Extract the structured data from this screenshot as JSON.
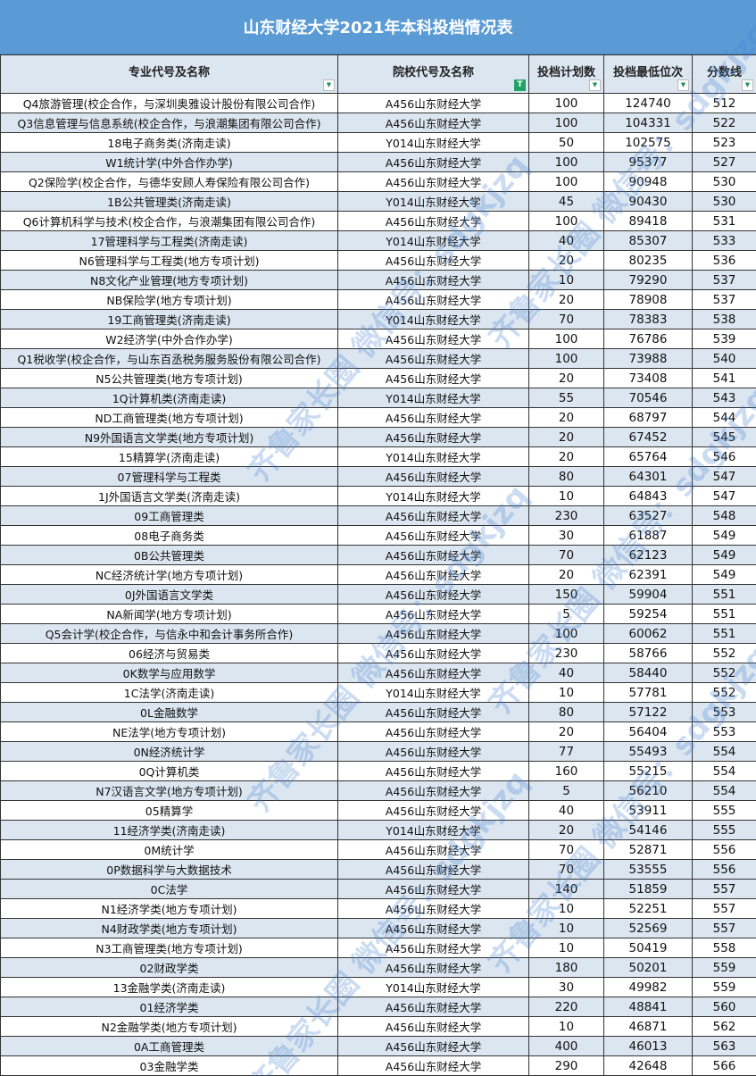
{
  "title": "山东财经大学2021年本科投档情况表",
  "columns": [
    "专业代号及名称",
    "院校代号及名称",
    "投档计划数",
    "投档最低位次",
    "分数线"
  ],
  "filter_icons": [
    "filter-dropdown-icon",
    "filter-active-icon",
    "filter-dropdown-icon",
    "filter-dropdown-icon",
    "filter-dropdown-icon"
  ],
  "colors": {
    "title_bg": "#5b9bd5",
    "stripe": "#dce6f1",
    "filter_active": "#21a366"
  },
  "watermark": "齐鲁家长圈 微信号：sdgkjzq",
  "rows": [
    [
      "Q4旅游管理(校企合作，与深圳奥雅设计股份有限公司合作)",
      "A456山东财经大学",
      "100",
      "124740",
      "512"
    ],
    [
      "Q3信息管理与信息系统(校企合作，与浪潮集团有限公司合作)",
      "A456山东财经大学",
      "100",
      "104331",
      "522"
    ],
    [
      "18电子商务类(济南走读)",
      "Y014山东财经大学",
      "50",
      "102575",
      "523"
    ],
    [
      "W1统计学(中外合作办学)",
      "A456山东财经大学",
      "100",
      "95377",
      "527"
    ],
    [
      "Q2保险学(校企合作，与德华安顾人寿保险有限公司合作)",
      "A456山东财经大学",
      "100",
      "90948",
      "530"
    ],
    [
      "1B公共管理类(济南走读)",
      "Y014山东财经大学",
      "45",
      "90430",
      "530"
    ],
    [
      "Q6计算机科学与技术(校企合作，与浪潮集团有限公司合作)",
      "A456山东财经大学",
      "100",
      "89418",
      "531"
    ],
    [
      "17管理科学与工程类(济南走读)",
      "Y014山东财经大学",
      "40",
      "85307",
      "533"
    ],
    [
      "N6管理科学与工程类(地方专项计划)",
      "A456山东财经大学",
      "20",
      "80235",
      "536"
    ],
    [
      "N8文化产业管理(地方专项计划)",
      "A456山东财经大学",
      "10",
      "79290",
      "537"
    ],
    [
      "NB保险学(地方专项计划)",
      "A456山东财经大学",
      "20",
      "78908",
      "537"
    ],
    [
      "19工商管理类(济南走读)",
      "Y014山东财经大学",
      "70",
      "78383",
      "538"
    ],
    [
      "W2经济学(中外合作办学)",
      "A456山东财经大学",
      "100",
      "76786",
      "539"
    ],
    [
      "Q1税收学(校企合作，与山东百丞税务服务股份有限公司合作)",
      "A456山东财经大学",
      "100",
      "73988",
      "540"
    ],
    [
      "N5公共管理类(地方专项计划)",
      "A456山东财经大学",
      "20",
      "73408",
      "541"
    ],
    [
      "1Q计算机类(济南走读)",
      "Y014山东财经大学",
      "55",
      "70546",
      "543"
    ],
    [
      "ND工商管理类(地方专项计划)",
      "A456山东财经大学",
      "20",
      "68797",
      "544"
    ],
    [
      "N9外国语言文学类(地方专项计划)",
      "A456山东财经大学",
      "20",
      "67452",
      "545"
    ],
    [
      "15精算学(济南走读)",
      "Y014山东财经大学",
      "20",
      "65764",
      "546"
    ],
    [
      "07管理科学与工程类",
      "A456山东财经大学",
      "80",
      "64301",
      "547"
    ],
    [
      "1J外国语言文学类(济南走读)",
      "Y014山东财经大学",
      "10",
      "64843",
      "547"
    ],
    [
      "09工商管理类",
      "A456山东财经大学",
      "230",
      "63527",
      "548"
    ],
    [
      "08电子商务类",
      "A456山东财经大学",
      "30",
      "61887",
      "549"
    ],
    [
      "0B公共管理类",
      "A456山东财经大学",
      "70",
      "62123",
      "549"
    ],
    [
      "NC经济统计学(地方专项计划)",
      "A456山东财经大学",
      "20",
      "62391",
      "549"
    ],
    [
      "0J外国语言文学类",
      "A456山东财经大学",
      "150",
      "59904",
      "551"
    ],
    [
      "NA新闻学(地方专项计划)",
      "A456山东财经大学",
      "5",
      "59254",
      "551"
    ],
    [
      "Q5会计学(校企合作，与信永中和会计事务所合作)",
      "A456山东财经大学",
      "100",
      "60062",
      "551"
    ],
    [
      "06经济与贸易类",
      "A456山东财经大学",
      "230",
      "58766",
      "552"
    ],
    [
      "0K数学与应用数学",
      "A456山东财经大学",
      "40",
      "58440",
      "552"
    ],
    [
      "1C法学(济南走读)",
      "Y014山东财经大学",
      "10",
      "57781",
      "552"
    ],
    [
      "0L金融数学",
      "A456山东财经大学",
      "80",
      "57122",
      "553"
    ],
    [
      "NE法学(地方专项计划)",
      "A456山东财经大学",
      "20",
      "56404",
      "553"
    ],
    [
      "0N经济统计学",
      "A456山东财经大学",
      "77",
      "55493",
      "554"
    ],
    [
      "0Q计算机类",
      "A456山东财经大学",
      "160",
      "55215",
      "554"
    ],
    [
      "N7汉语言文学(地方专项计划)",
      "A456山东财经大学",
      "5",
      "56210",
      "554"
    ],
    [
      "05精算学",
      "A456山东财经大学",
      "40",
      "53911",
      "555"
    ],
    [
      "11经济学类(济南走读)",
      "Y014山东财经大学",
      "20",
      "54146",
      "555"
    ],
    [
      "0M统计学",
      "A456山东财经大学",
      "70",
      "52871",
      "556"
    ],
    [
      "0P数据科学与大数据技术",
      "A456山东财经大学",
      "70",
      "53555",
      "556"
    ],
    [
      "0C法学",
      "A456山东财经大学",
      "140",
      "51859",
      "557"
    ],
    [
      "N1经济学类(地方专项计划)",
      "A456山东财经大学",
      "10",
      "52251",
      "557"
    ],
    [
      "N4财政学类(地方专项计划)",
      "A456山东财经大学",
      "10",
      "52569",
      "557"
    ],
    [
      "N3工商管理类(地方专项计划)",
      "A456山东财经大学",
      "10",
      "50419",
      "558"
    ],
    [
      "02财政学类",
      "A456山东财经大学",
      "180",
      "50201",
      "559"
    ],
    [
      "13金融学类(济南走读)",
      "Y014山东财经大学",
      "30",
      "49982",
      "559"
    ],
    [
      "01经济学类",
      "A456山东财经大学",
      "220",
      "48841",
      "560"
    ],
    [
      "N2金融学类(地方专项计划)",
      "A456山东财经大学",
      "10",
      "46871",
      "562"
    ],
    [
      "0A工商管理类",
      "A456山东财经大学",
      "400",
      "46013",
      "563"
    ],
    [
      "03金融学类",
      "A456山东财经大学",
      "290",
      "42648",
      "566"
    ]
  ]
}
